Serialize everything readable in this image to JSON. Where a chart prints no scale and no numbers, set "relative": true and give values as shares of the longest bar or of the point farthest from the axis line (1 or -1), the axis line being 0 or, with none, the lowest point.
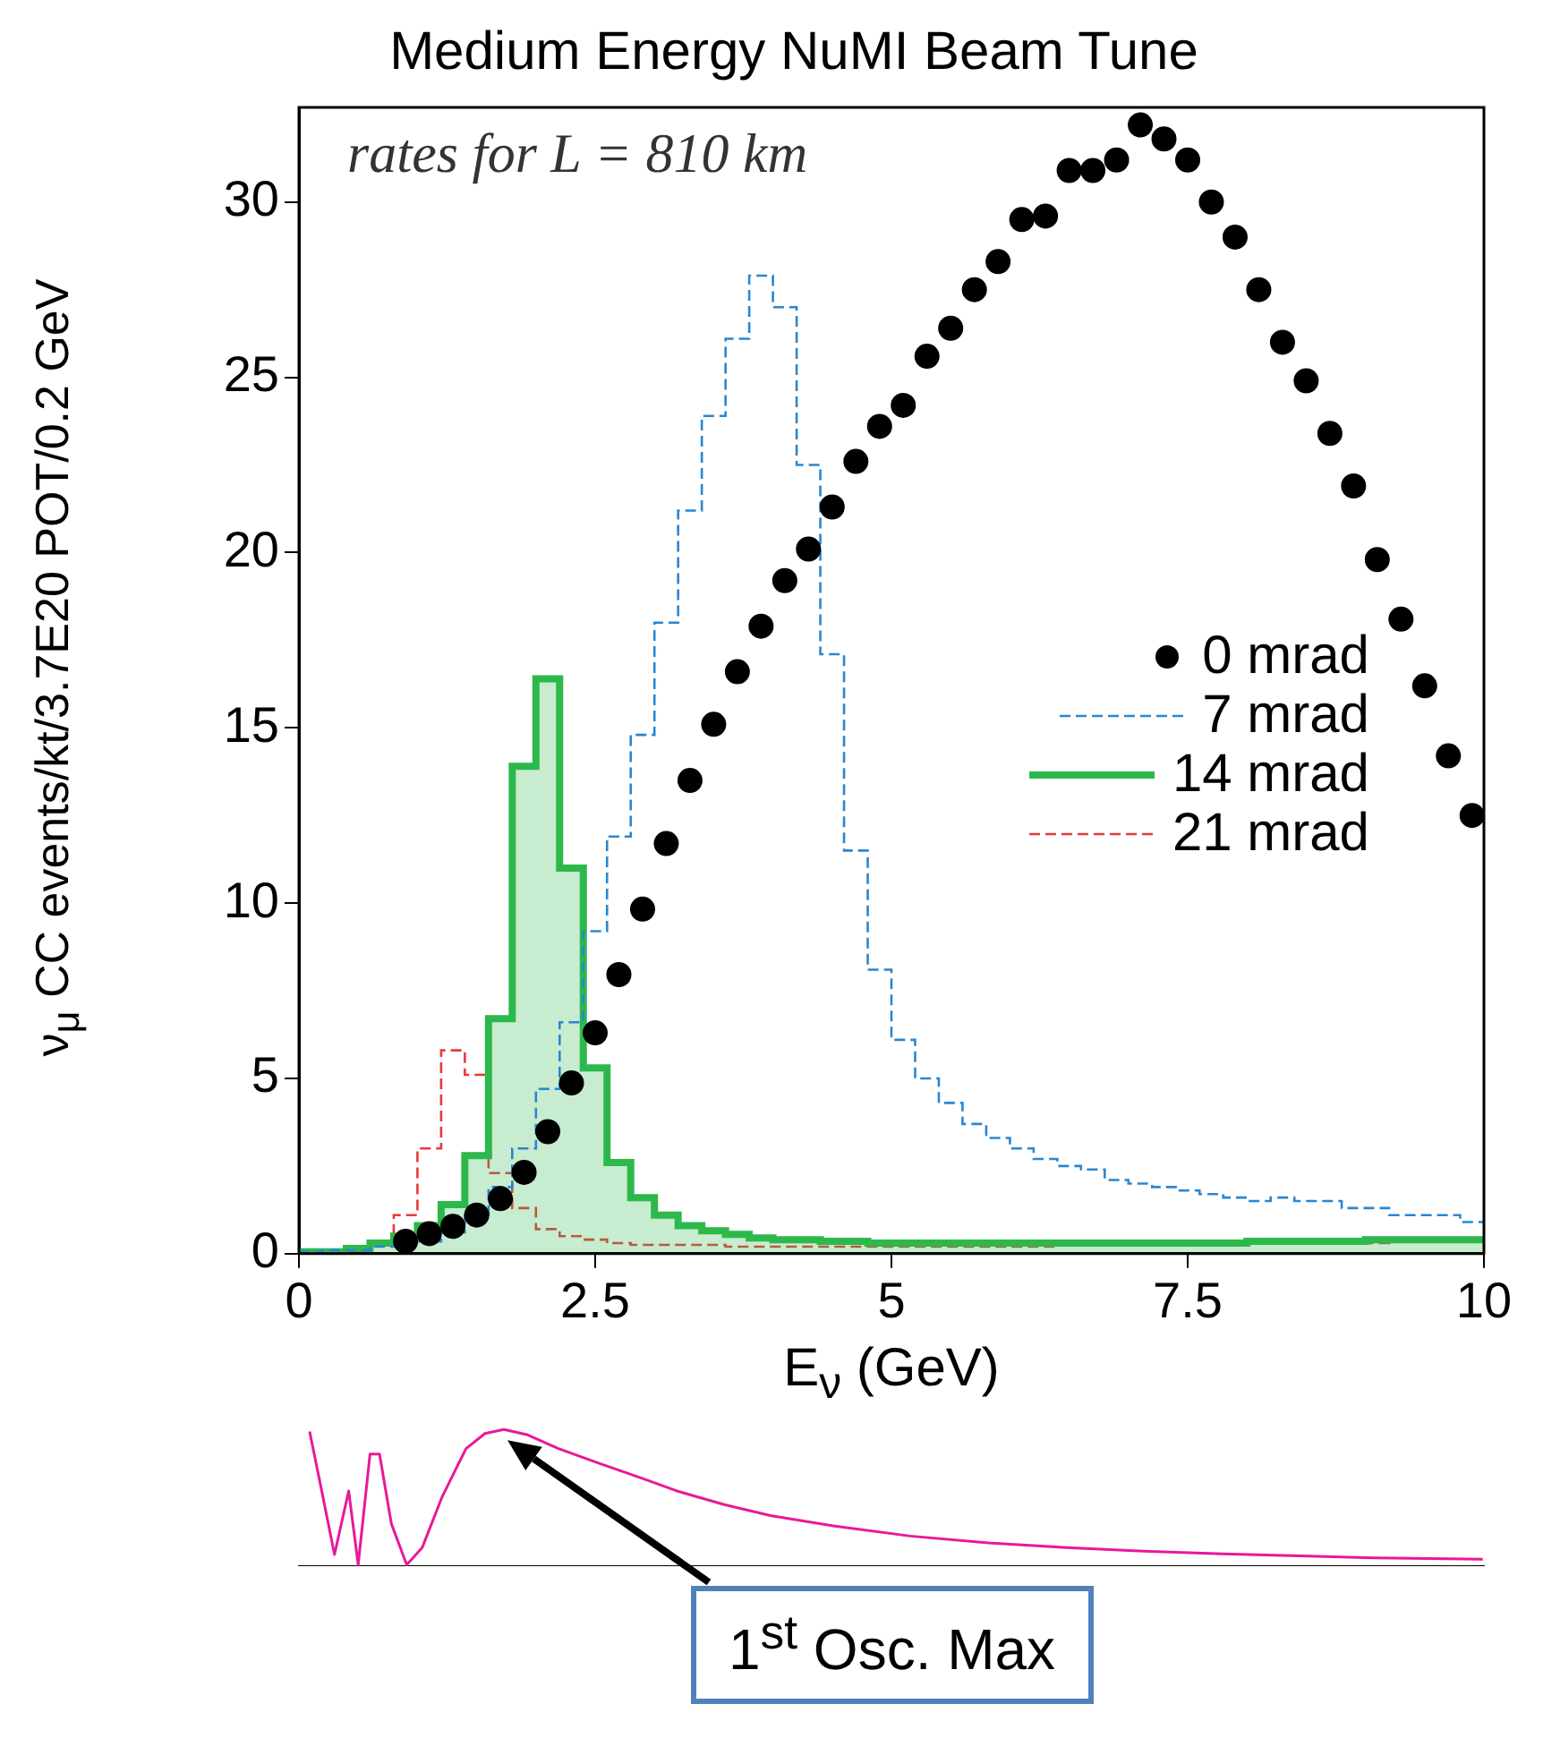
{
  "chart_data": [
    {
      "type": "histogram",
      "title": "Medium Energy NuMI Beam Tune",
      "xlabel": "E$_{ν}$ (GeV)",
      "ylabel": "ν$_{μ}$ CC events/kt/3.7E20 POT/0.2 GeV",
      "annotations": [
        "rates for L = 810 km"
      ],
      "legend": "right",
      "xlim": [
        0,
        10
      ],
      "xticks": [
        0,
        2.5,
        5,
        7.5,
        10
      ],
      "ylim": [
        0,
        32.7
      ],
      "yticks": [
        0,
        5,
        10,
        15,
        20,
        25,
        30
      ],
      "bins": [
        0,
        0.2,
        0.4,
        0.6,
        0.8,
        1,
        1.2,
        1.4,
        1.6,
        1.8,
        2,
        2.2,
        2.4,
        2.6,
        2.8,
        3,
        3.2,
        3.4,
        3.6,
        3.8,
        4,
        4.2,
        4.4,
        4.6,
        4.8,
        5,
        5.2,
        5.4,
        5.6,
        5.8,
        6,
        6.2,
        6.4,
        6.6,
        6.8,
        7,
        7.2,
        7.4,
        7.6,
        7.8,
        8,
        8.2,
        8.4,
        8.6,
        8.8,
        9,
        9.2,
        9.4,
        9.6,
        9.8,
        10
      ],
      "series": [
        {
          "name": "0 mrad",
          "type": "scatter",
          "marker": "circle",
          "color": "#000000",
          "x": [
            0.9,
            1.1,
            1.3,
            1.5,
            1.7,
            1.9,
            2.1,
            2.3,
            2.5,
            2.7,
            2.9,
            3.1,
            3.3,
            3.5,
            3.7,
            3.9,
            4.1,
            4.3,
            4.5,
            4.7,
            4.9,
            5.1,
            5.3,
            5.5,
            5.7,
            5.9,
            6.1,
            6.3,
            6.5,
            6.7,
            6.9,
            7.1,
            7.3,
            7.5,
            7.7,
            7.9,
            8.1,
            8.3,
            8.5,
            8.7,
            8.9,
            9.1,
            9.3,
            9.5,
            9.7,
            9.9
          ],
          "values": [
            0.35,
            0.57,
            0.78,
            1.1,
            1.57,
            2.32,
            3.48,
            4.87,
            6.3,
            7.96,
            9.83,
            11.7,
            13.5,
            15.1,
            16.6,
            17.9,
            19.2,
            20.1,
            21.3,
            22.6,
            23.6,
            24.2,
            25.6,
            26.4,
            27.5,
            28.3,
            29.5,
            29.6,
            30.9,
            30.9,
            31.2,
            32.2,
            31.8,
            31.2,
            30.0,
            29.0,
            27.5,
            26.0,
            24.9,
            23.4,
            21.9,
            19.8,
            18.1,
            16.2,
            14.2,
            12.5
          ]
        },
        {
          "name": "7 mrad",
          "line_style": "dashed",
          "color": "#2a86d1",
          "values": [
            0.05,
            0.1,
            0.1,
            0.2,
            0.25,
            0.35,
            0.6,
            1.1,
            1.9,
            3.0,
            4.7,
            6.6,
            9.2,
            11.9,
            14.8,
            18.0,
            21.2,
            23.9,
            26.1,
            27.9,
            27.0,
            22.5,
            17.1,
            11.5,
            8.1,
            6.1,
            5.0,
            4.3,
            3.7,
            3.3,
            3.0,
            2.7,
            2.5,
            2.4,
            2.1,
            2.0,
            1.9,
            1.8,
            1.7,
            1.6,
            1.5,
            1.6,
            1.5,
            1.5,
            1.3,
            1.3,
            1.1,
            1.1,
            1.1,
            0.9
          ]
        },
        {
          "name": "14 mrad",
          "line_style": "solid",
          "color": "#2db84b",
          "values": [
            0.05,
            0.05,
            0.15,
            0.3,
            0.5,
            0.8,
            1.4,
            2.8,
            6.7,
            13.9,
            16.4,
            11.0,
            5.3,
            2.6,
            1.6,
            1.1,
            0.8,
            0.65,
            0.55,
            0.45,
            0.4,
            0.4,
            0.35,
            0.35,
            0.3,
            0.3,
            0.3,
            0.3,
            0.3,
            0.3,
            0.3,
            0.3,
            0.3,
            0.3,
            0.3,
            0.3,
            0.3,
            0.3,
            0.3,
            0.3,
            0.35,
            0.35,
            0.35,
            0.35,
            0.35,
            0.4,
            0.4,
            0.4,
            0.4,
            0.4
          ]
        },
        {
          "name": "21 mrad",
          "line_style": "dashed",
          "color": "#e83a3a",
          "values": [
            0.02,
            0.05,
            0.1,
            0.25,
            1.1,
            3.0,
            5.8,
            5.1,
            2.3,
            1.3,
            0.7,
            0.5,
            0.4,
            0.3,
            0.25,
            0.25,
            0.25,
            0.25,
            0.2,
            0.2,
            0.2,
            0.2,
            0.2,
            0.2,
            0.2,
            0.2,
            0.2,
            0.2,
            0.2,
            0.2,
            0.2,
            0.2,
            0.25,
            0.25,
            0.25,
            0.25,
            0.25,
            0.25,
            0.25,
            0.3,
            0.3,
            0.3,
            0.3,
            0.3,
            0.3,
            0.3,
            0.35,
            0.35,
            0.35,
            0.35
          ]
        }
      ]
    },
    {
      "type": "line",
      "relative": true,
      "color": "#e8199a",
      "xlim": [
        0,
        10
      ],
      "tick_labels": false,
      "annotations": [
        "1$^{st}$ Osc. Max"
      ],
      "x": [
        0.09,
        0.19,
        0.3,
        0.42,
        0.5,
        0.6,
        0.68,
        0.78,
        0.91,
        1.04,
        1.21,
        1.41,
        1.57,
        1.73,
        1.93,
        2.19,
        2.54,
        2.87,
        3.19,
        3.59,
        3.98,
        4.51,
        5.16,
        5.82,
        6.48,
        7.13,
        7.79,
        8.45,
        9.1,
        9.99
      ],
      "values": [
        0.985,
        0.56,
        0.085,
        0.55,
        0.01,
        0.82,
        0.82,
        0.31,
        0.01,
        0.135,
        0.51,
        0.86,
        0.97,
        1,
        0.96,
        0.86,
        0.75,
        0.65,
        0.55,
        0.45,
        0.37,
        0.295,
        0.22,
        0.17,
        0.135,
        0.11,
        0.09,
        0.075,
        0.06,
        0.05
      ]
    }
  ]
}
